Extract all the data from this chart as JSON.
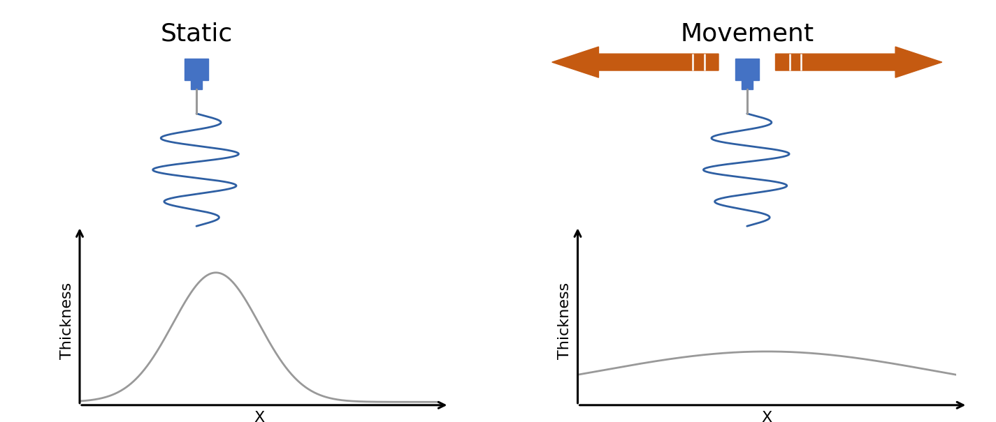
{
  "title_static": "Static",
  "title_movement": "Movement",
  "title_fontsize": 26,
  "xlabel": "X",
  "ylabel": "Thickness",
  "axis_label_fontsize": 16,
  "needle_body_color": "#4472C4",
  "needle_tip_color": "#999999",
  "wire_color": "#2E5FA3",
  "arrow_color": "#C55A11",
  "curve_color": "#999999",
  "background_color": "#ffffff",
  "fig_width": 14.25,
  "fig_height": 6.05
}
